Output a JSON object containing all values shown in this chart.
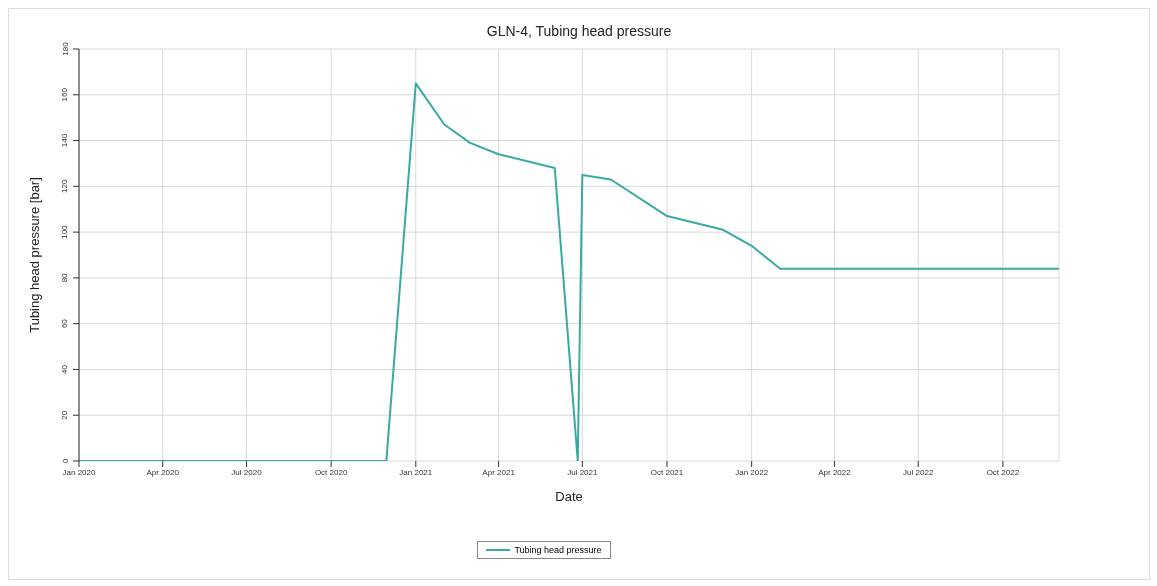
{
  "chart_data": {
    "type": "line",
    "title": "GLN-4, Tubing head pressure",
    "xlabel": "Date",
    "ylabel": "Tubing head pressure [bar]",
    "x": [
      "2020-01-01",
      "2020-11-30",
      "2021-01-01",
      "2021-02-01",
      "2021-03-01",
      "2021-04-01",
      "2021-06-01",
      "2021-06-26",
      "2021-07-01",
      "2021-08-01",
      "2021-10-01",
      "2021-12-01",
      "2022-01-01",
      "2022-02-01",
      "2022-12-01"
    ],
    "series": [
      {
        "name": "Tubing head pressure",
        "color": "#3aaaa0",
        "values": [
          0,
          0,
          165,
          147,
          139,
          134,
          128,
          0,
          125,
          123,
          107,
          101,
          94,
          84,
          84
        ]
      }
    ],
    "xlim": [
      "2020-01-01",
      "2022-12-01"
    ],
    "xticks": [
      {
        "value": "2020-01-01",
        "label": "Jan 2020"
      },
      {
        "value": "2020-04-01",
        "label": "Apr 2020"
      },
      {
        "value": "2020-07-01",
        "label": "Jul 2020"
      },
      {
        "value": "2020-10-01",
        "label": "Oct 2020"
      },
      {
        "value": "2021-01-01",
        "label": "Jan 2021"
      },
      {
        "value": "2021-04-01",
        "label": "Apr 2021"
      },
      {
        "value": "2021-07-01",
        "label": "Jul 2021"
      },
      {
        "value": "2021-10-01",
        "label": "Oct 2021"
      },
      {
        "value": "2022-01-01",
        "label": "Jan 2022"
      },
      {
        "value": "2022-04-01",
        "label": "Apr 2022"
      },
      {
        "value": "2022-07-01",
        "label": "Jul 2022"
      },
      {
        "value": "2022-10-01",
        "label": "Oct 2022"
      }
    ],
    "ylim": [
      0,
      180
    ],
    "yticks": [
      0,
      20,
      40,
      60,
      80,
      100,
      120,
      140,
      160,
      180
    ],
    "grid": true,
    "legend": "bottom",
    "marker": "none",
    "line_style": "solid"
  }
}
